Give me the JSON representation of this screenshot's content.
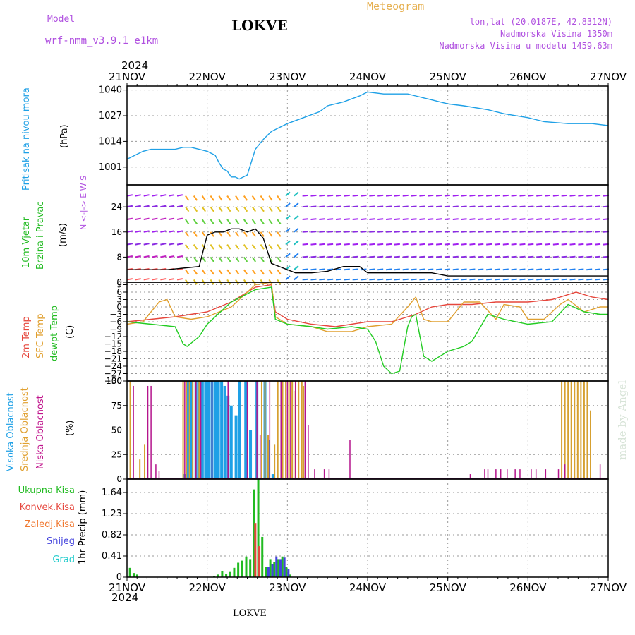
{
  "header": {
    "model_label": "Model",
    "model_name": "wrf-nmm_v3.9.1 e1km",
    "station": "LOKVE",
    "meteogram": "Meteogram",
    "lonlat": "lon,lat (20.0187E, 42.8312N)",
    "altitude": "Nadmorska Visina 1350m",
    "model_altitude": "Nadmorska Visina u modelu 1459.63m",
    "year": "2024",
    "footer_station": "LOKVE",
    "credit": "made by Angel",
    "wind_compass": "N <-|-> E W S"
  },
  "colors": {
    "pressure": "#1ea0e6",
    "wind_label": "#22bb22",
    "wind_speed": "#000000",
    "temp2m": "#e6463c",
    "sfc_temp": "#e0a030",
    "dewpt": "#22cc22",
    "cloud_high": "#1ea0e6",
    "cloud_mid": "#d6a030",
    "cloud_low": "#b4148c",
    "rain_total": "#22bb22",
    "rain_conv": "#e6463c",
    "rain_frz": "#f07830",
    "snow": "#4444dd",
    "hail": "#22cccc",
    "header_purple": "#b050e0",
    "header_orange": "#e6b050"
  },
  "chart_data": [
    {
      "type": "line",
      "id": "pressure",
      "ylabel": "Pritisak na nivou mora",
      "unit": "(hPa)",
      "ylim": [
        992,
        1042
      ],
      "yticks": [
        1001,
        1014,
        1027,
        1040
      ],
      "grid": true,
      "series": [
        {
          "x": [
            0,
            0.1,
            0.2,
            0.3,
            0.4,
            0.5,
            0.6,
            0.7,
            0.8,
            0.9,
            1.0,
            1.05,
            1.1,
            1.15,
            1.2,
            1.25,
            1.3,
            1.35,
            1.4,
            1.5,
            1.6,
            1.7,
            1.75,
            1.8,
            1.9,
            2.0,
            2.2,
            2.4,
            2.5,
            2.7,
            2.9,
            3.0,
            3.2,
            3.5,
            3.6,
            3.7,
            3.8,
            3.9,
            4.0,
            4.2,
            4.5,
            4.7,
            5.0,
            5.2,
            5.5,
            5.8,
            6.0
          ],
          "values": [
            1005,
            1007,
            1009,
            1010,
            1010,
            1010,
            1010,
            1011,
            1011,
            1010,
            1009,
            1008,
            1007,
            1003,
            1000,
            999,
            996,
            996,
            995,
            997,
            1010,
            1015,
            1017,
            1019,
            1021,
            1023,
            1026,
            1029,
            1032,
            1034,
            1037,
            1039,
            1038,
            1038,
            1037,
            1036,
            1035,
            1034,
            1033,
            1032,
            1030,
            1028,
            1026,
            1024,
            1023,
            1023,
            1022
          ]
        }
      ]
    },
    {
      "type": "line",
      "id": "wind",
      "ylabel": "10m Vjetar",
      "ylabel2": "Brzina i Pravac",
      "unit": "(m/s)",
      "ylim": [
        0,
        31
      ],
      "yticks": [
        0,
        8,
        16,
        24
      ],
      "grid": true,
      "series": [
        {
          "name": "speed",
          "x": [
            0,
            0.5,
            0.9,
            1.0,
            1.1,
            1.2,
            1.3,
            1.4,
            1.5,
            1.6,
            1.7,
            1.8,
            1.9,
            2.0,
            2.1,
            2.2,
            2.3,
            2.5,
            2.7,
            2.9,
            3.0,
            3.2,
            3.4,
            3.6,
            3.8,
            4.0,
            4.5,
            5.0,
            5.5,
            6.0
          ],
          "values": [
            4,
            4,
            5,
            15,
            16,
            16,
            17,
            17,
            16,
            17,
            14,
            6,
            5,
            4,
            3,
            3,
            3,
            3.5,
            5,
            5,
            3,
            3,
            3,
            3,
            3,
            2,
            2,
            2,
            2,
            2
          ]
        }
      ]
    },
    {
      "type": "line",
      "id": "temperature",
      "ylabel": "2m Temp",
      "ylabel2": "SFC Temp",
      "ylabel3": "dewpt Temp",
      "unit": "(C)",
      "ylim": [
        -30,
        10
      ],
      "yticks": [
        9,
        6,
        3,
        0,
        -3,
        -6,
        -9,
        -12,
        -15,
        -18,
        -21,
        -24,
        -27,
        -30
      ],
      "grid": true,
      "series": [
        {
          "name": "2m Temp",
          "x": [
            0,
            0.3,
            0.6,
            0.8,
            1.0,
            1.3,
            1.6,
            1.8,
            1.85,
            2.0,
            2.3,
            2.6,
            2.8,
            3.0,
            3.3,
            3.6,
            3.8,
            4.0,
            4.3,
            4.6,
            4.8,
            5.0,
            5.3,
            5.6,
            5.8,
            6.0
          ],
          "values": [
            -6,
            -5,
            -4,
            -3,
            -2,
            2,
            8,
            9,
            -2,
            -5,
            -7,
            -8,
            -7,
            -6,
            -6,
            -3,
            0,
            1,
            1,
            2,
            2,
            2,
            3,
            6,
            4,
            3
          ]
        },
        {
          "name": "SFC Temp",
          "x": [
            0,
            0.2,
            0.4,
            0.5,
            0.6,
            0.8,
            1.0,
            1.3,
            1.6,
            1.8,
            1.85,
            2.0,
            2.3,
            2.5,
            2.8,
            3.0,
            3.3,
            3.5,
            3.6,
            3.7,
            3.8,
            4.0,
            4.2,
            4.4,
            4.6,
            4.7,
            4.9,
            5.0,
            5.2,
            5.4,
            5.5,
            5.7,
            5.9,
            6.0
          ],
          "values": [
            -7,
            -6,
            2,
            3,
            -4,
            -5,
            -4,
            0,
            9,
            10,
            -4,
            -7,
            -8,
            -10,
            -10,
            -8,
            -7,
            0,
            4,
            -5,
            -6,
            -6,
            2,
            2,
            -5,
            1,
            0,
            -5,
            -5,
            1,
            3,
            -2,
            0,
            0
          ]
        },
        {
          "name": "dewpt Temp",
          "x": [
            0,
            0.3,
            0.6,
            0.7,
            0.75,
            0.9,
            1.0,
            1.3,
            1.6,
            1.8,
            1.85,
            2.0,
            2.3,
            2.5,
            2.8,
            3.0,
            3.1,
            3.2,
            3.3,
            3.4,
            3.5,
            3.55,
            3.6,
            3.7,
            3.8,
            4.0,
            4.2,
            4.3,
            4.5,
            4.7,
            5.0,
            5.3,
            5.5,
            5.7,
            5.9,
            6.0
          ],
          "values": [
            -6,
            -7,
            -8,
            -15,
            -16,
            -12,
            -7,
            2,
            7,
            8,
            -5,
            -7,
            -8,
            -9,
            -8,
            -9,
            -14,
            -24,
            -27,
            -26,
            -8,
            -4,
            -3,
            -20,
            -22,
            -18,
            -16,
            -14,
            -3,
            -5,
            -7,
            -6,
            1,
            -2,
            -3,
            -3
          ]
        }
      ]
    },
    {
      "type": "bar",
      "id": "clouds",
      "ylabel": "Visoka Oblacnost",
      "ylabel2": "Srednja Oblacnost",
      "ylabel3": "Niska Oblacnost",
      "unit": "(%)",
      "ylim": [
        0,
        100
      ],
      "yticks": [
        0,
        25,
        50,
        75,
        100
      ],
      "grid": true,
      "series": [
        {
          "name": "high",
          "x": [
            0.72,
            0.76,
            0.8,
            0.86,
            0.9,
            0.94,
            0.98,
            1.02,
            1.06,
            1.1,
            1.14,
            1.18,
            1.22,
            1.26,
            1.3,
            1.36,
            1.4,
            1.48,
            1.54,
            1.62,
            1.72,
            1.76,
            1.82
          ],
          "values": [
            5,
            100,
            100,
            100,
            100,
            100,
            100,
            100,
            100,
            100,
            100,
            100,
            95,
            85,
            75,
            65,
            100,
            100,
            50,
            100,
            100,
            40,
            5
          ]
        },
        {
          "name": "mid",
          "x": [
            0.04,
            0.16,
            0.22,
            0.7,
            0.74,
            0.78,
            0.82,
            0.9,
            1.68,
            1.72,
            1.76,
            1.84,
            1.88,
            1.94,
            1.98,
            2.02,
            2.06,
            2.1,
            2.14,
            2.18,
            2.2,
            5.42,
            5.46,
            5.5,
            5.54,
            5.58,
            5.62,
            5.66,
            5.7,
            5.74,
            5.78
          ],
          "values": [
            100,
            20,
            35,
            100,
            100,
            100,
            100,
            100,
            100,
            100,
            45,
            35,
            100,
            100,
            100,
            100,
            100,
            90,
            100,
            100,
            95,
            100,
            100,
            100,
            100,
            100,
            100,
            100,
            100,
            100,
            70
          ]
        },
        {
          "name": "low",
          "x": [
            0.08,
            0.26,
            0.3,
            0.36,
            0.4,
            0.72,
            0.86,
            0.92,
            1.06,
            1.26,
            1.5,
            1.62,
            1.66,
            1.78,
            1.92,
            2.0,
            2.04,
            2.1,
            2.22,
            2.26,
            2.34,
            2.46,
            2.52,
            2.78,
            3.2,
            4.28,
            4.46,
            4.5,
            4.6,
            4.66,
            4.74,
            4.84,
            4.9,
            5.04,
            5.1,
            5.22,
            5.38,
            5.46,
            5.9
          ],
          "values": [
            95,
            95,
            95,
            15,
            8,
            100,
            100,
            100,
            100,
            100,
            100,
            100,
            45,
            100,
            100,
            100,
            100,
            100,
            100,
            55,
            10,
            10,
            10,
            40,
            0,
            5,
            10,
            10,
            10,
            10,
            10,
            10,
            10,
            10,
            10,
            10,
            10,
            15,
            15
          ]
        }
      ]
    },
    {
      "type": "bar",
      "id": "precip",
      "ylabel": "1hr Precip (mm)",
      "legend": [
        "Ukupna Kisa",
        "Konvek.Kisa",
        "Zaledj.Kisa",
        "Snijeg",
        "Grad"
      ],
      "ylim": [
        0,
        1.9
      ],
      "yticks": [
        0,
        0.41,
        0.82,
        1.23,
        1.64
      ],
      "grid": true,
      "series": [
        {
          "name": "Ukupna Kisa",
          "x": [
            0.05,
            0.1,
            0.14,
            1.1,
            1.15,
            1.2,
            1.25,
            1.3,
            1.35,
            1.4,
            1.45,
            1.5,
            1.55,
            1.6,
            1.65,
            1.7,
            1.75,
            1.8,
            1.85,
            1.9,
            1.95,
            2.0,
            2.05
          ],
          "values": [
            0.18,
            0.08,
            0.05,
            0.02,
            0.05,
            0.12,
            0.06,
            0.1,
            0.18,
            0.28,
            0.32,
            0.4,
            0.35,
            1.7,
            1.9,
            0.78,
            0.2,
            0.35,
            0.3,
            0.35,
            0.4,
            0.2,
            0.05
          ]
        },
        {
          "name": "Konvek.Kisa",
          "x": [
            1.6,
            1.65
          ],
          "values": [
            1.05,
            0.6
          ]
        },
        {
          "name": "Snijeg",
          "x": [
            1.75,
            1.8,
            1.85,
            1.9,
            1.95,
            2.0
          ],
          "values": [
            0.2,
            0.25,
            0.4,
            0.35,
            0.38,
            0.15
          ]
        }
      ]
    }
  ],
  "xaxis": {
    "ticks": [
      "21NOV",
      "22NOV",
      "23NOV",
      "24NOV",
      "25NOV",
      "26NOV",
      "27NOV"
    ],
    "year": "2024"
  }
}
